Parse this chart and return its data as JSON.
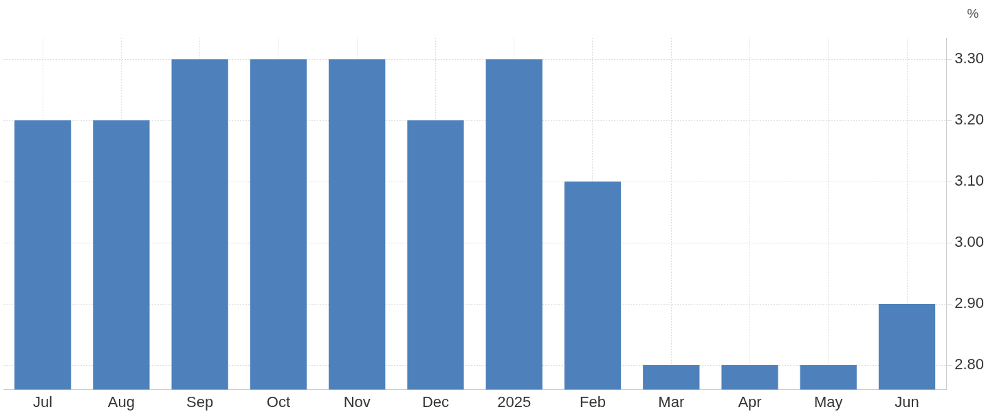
{
  "chart_data": {
    "type": "bar",
    "ylabel": "%",
    "categories": [
      "Jul",
      "Aug",
      "Sep",
      "Oct",
      "Nov",
      "Dec",
      "2025",
      "Feb",
      "Mar",
      "Apr",
      "May",
      "Jun"
    ],
    "values": [
      3.2,
      3.2,
      3.3,
      3.3,
      3.3,
      3.2,
      3.3,
      3.1,
      2.8,
      2.8,
      2.8,
      2.9
    ],
    "color": "#4e81bb",
    "ylim": [
      2.76,
      3.335
    ],
    "yticks": [
      {
        "value": 2.8,
        "label": "2.80"
      },
      {
        "value": 2.9,
        "label": "2.90"
      },
      {
        "value": 3.0,
        "label": "3.00"
      },
      {
        "value": 3.1,
        "label": "3.10"
      },
      {
        "value": 3.2,
        "label": "3.20"
      },
      {
        "value": 3.3,
        "label": "3.30"
      }
    ],
    "grid": true,
    "legend": false
  }
}
